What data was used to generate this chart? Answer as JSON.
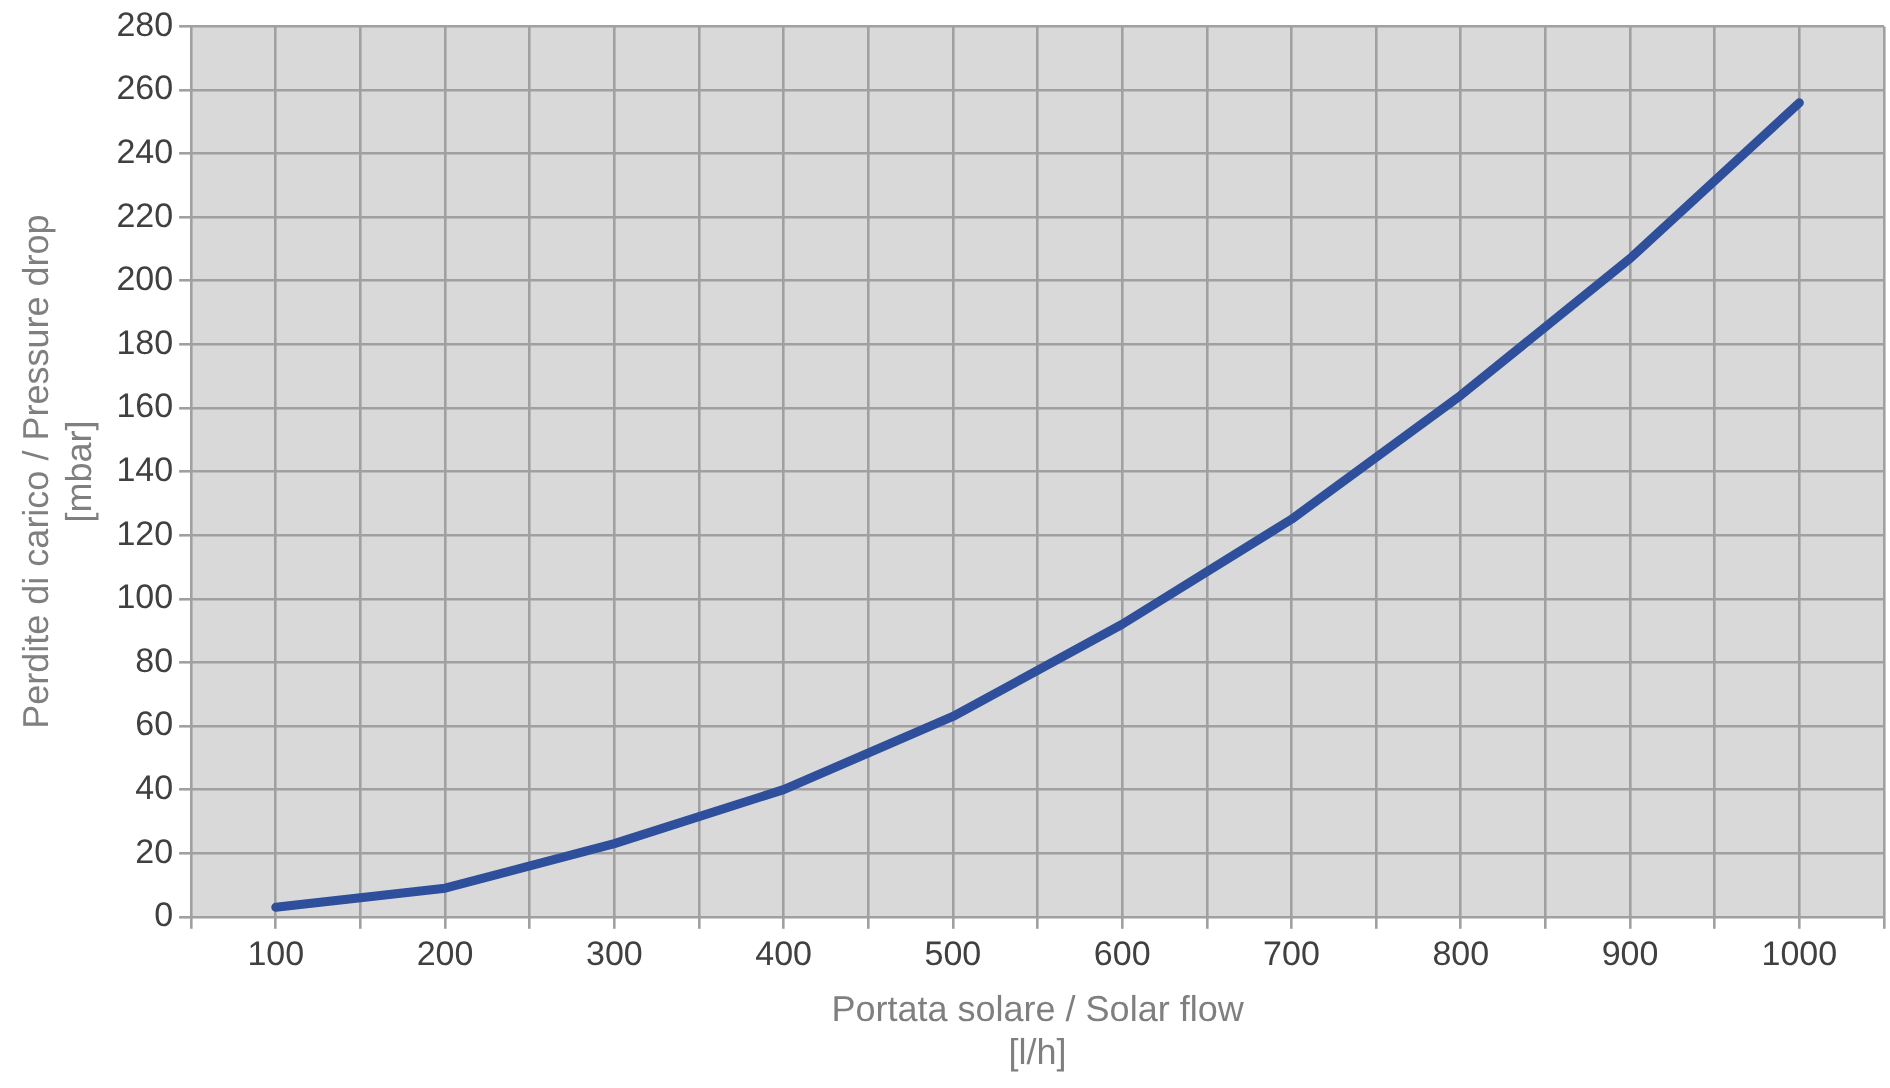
{
  "chart_data": {
    "type": "line",
    "xlabel": "Portata solare / Solar flow\n[l/h]",
    "ylabel": "Perdite di carico / Pressure drop\n[mbar]",
    "x": [
      100,
      200,
      300,
      400,
      500,
      600,
      700,
      800,
      900,
      1000
    ],
    "series": [
      {
        "color": "#2e4f9c",
        "values": [
          3,
          9,
          23,
          40,
          63,
          92,
          125,
          164,
          207,
          256
        ]
      }
    ],
    "xlim": [
      50,
      1050
    ],
    "xticks": [
      {
        "value": 50,
        "label": null
      },
      100,
      {
        "value": 150,
        "label": null
      },
      200,
      {
        "value": 250,
        "label": null
      },
      300,
      {
        "value": 350,
        "label": null
      },
      400,
      {
        "value": 450,
        "label": null
      },
      500,
      {
        "value": 550,
        "label": null
      },
      600,
      {
        "value": 650,
        "label": null
      },
      700,
      {
        "value": 750,
        "label": null
      },
      800,
      {
        "value": 850,
        "label": null
      },
      900,
      {
        "value": 950,
        "label": null
      },
      1000,
      {
        "value": 1050,
        "label": null
      }
    ],
    "ylim": [
      0,
      280
    ],
    "yticks": [
      0,
      20,
      40,
      60,
      80,
      100,
      120,
      140,
      160,
      180,
      200,
      220,
      240,
      260,
      280
    ],
    "grid": true,
    "legend": false,
    "marker": "none",
    "line_style": "solid"
  }
}
